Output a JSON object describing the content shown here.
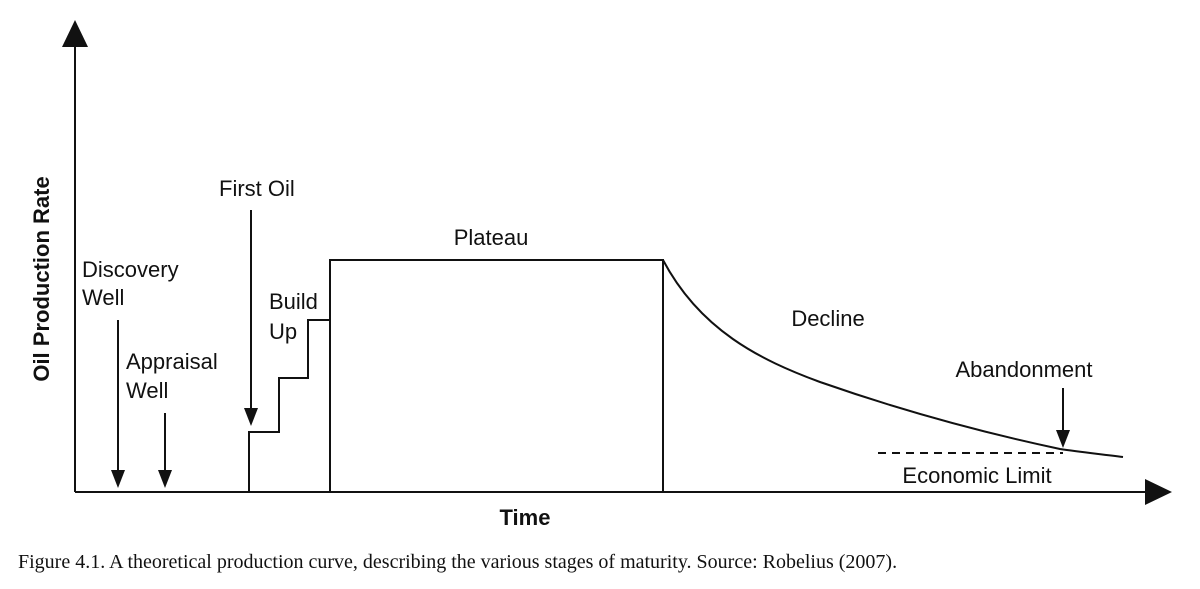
{
  "axes": {
    "x_label": "Time",
    "y_label": "Oil Production Rate"
  },
  "stages": {
    "discovery_well": [
      "Discovery",
      "Well"
    ],
    "appraisal_well": [
      "Appraisal",
      "Well"
    ],
    "first_oil": "First Oil",
    "build_up": [
      "Build",
      "Up"
    ],
    "plateau": "Plateau",
    "decline": "Decline",
    "abandonment": "Abandonment",
    "economic_limit": "Economic Limit"
  },
  "caption": "Figure 4.1. A theoretical production curve, describing the various stages of maturity. Source: Robelius (2007).",
  "colors": {
    "line": "#111111",
    "background": "#ffffff"
  }
}
